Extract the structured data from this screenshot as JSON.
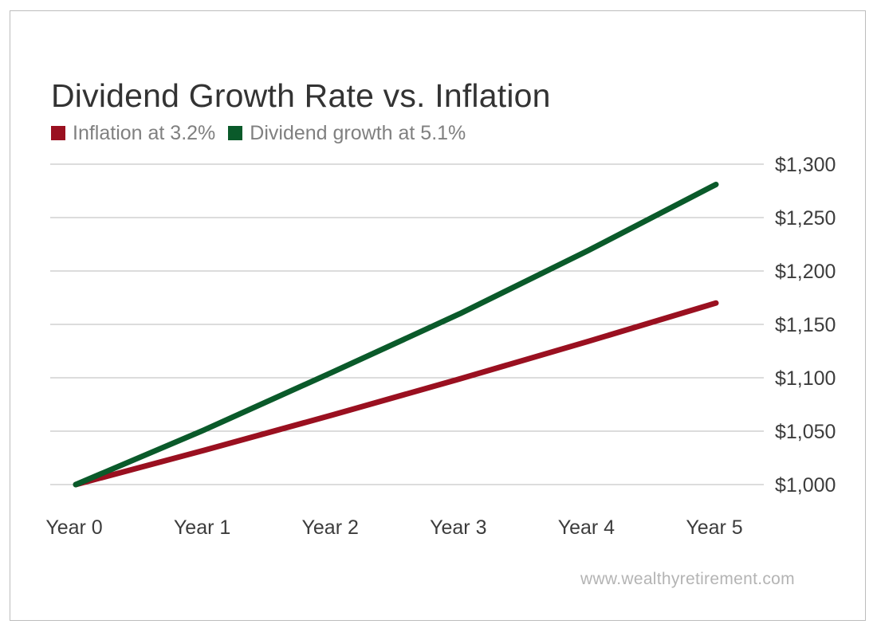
{
  "chart_data": {
    "type": "line",
    "title": "Dividend Growth Rate vs. Inflation",
    "categories": [
      "Year 0",
      "Year 1",
      "Year 2",
      "Year 3",
      "Year 4",
      "Year 5"
    ],
    "series": [
      {
        "name": "Inflation at 3.2%",
        "color": "#9a1020",
        "values": [
          1000,
          1032,
          1065,
          1099,
          1134,
          1170
        ]
      },
      {
        "name": "Dividend growth at 5.1%",
        "color": "#0a5a2a",
        "values": [
          1000,
          1051,
          1105,
          1160,
          1219,
          1281
        ]
      }
    ],
    "y_ticks": [
      1000,
      1050,
      1100,
      1150,
      1200,
      1250,
      1300
    ],
    "y_tick_labels": [
      "$1,000",
      "$1,050",
      "$1,100",
      "$1,150",
      "$1,200",
      "$1,250",
      "$1,300"
    ],
    "ylim": [
      1000,
      1300
    ],
    "grid": true,
    "y_axis_position": "right",
    "legend_placement": "top-left"
  },
  "footer": {
    "source": "www.wealthyretirement.com"
  },
  "colors": {
    "gridline": "#b9b9b9",
    "axis_text": "#3c3c3c",
    "title": "#333333",
    "legend_text": "#808080"
  }
}
